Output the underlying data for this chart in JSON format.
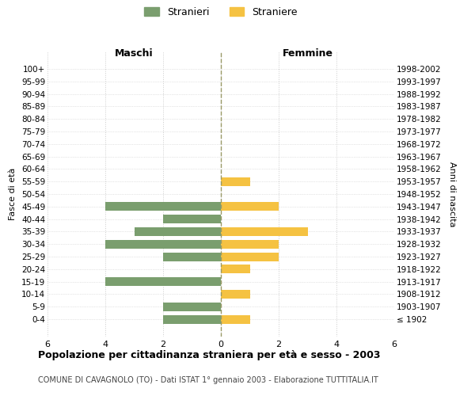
{
  "age_groups": [
    "100+",
    "95-99",
    "90-94",
    "85-89",
    "80-84",
    "75-79",
    "70-74",
    "65-69",
    "60-64",
    "55-59",
    "50-54",
    "45-49",
    "40-44",
    "35-39",
    "30-34",
    "25-29",
    "20-24",
    "15-19",
    "10-14",
    "5-9",
    "0-4"
  ],
  "birth_years": [
    "≤ 1902",
    "1903-1907",
    "1908-1912",
    "1913-1917",
    "1918-1922",
    "1923-1927",
    "1928-1932",
    "1933-1937",
    "1938-1942",
    "1943-1947",
    "1948-1952",
    "1953-1957",
    "1958-1962",
    "1963-1967",
    "1968-1972",
    "1973-1977",
    "1978-1982",
    "1983-1987",
    "1988-1992",
    "1993-1997",
    "1998-2002"
  ],
  "maschi": [
    0,
    0,
    0,
    0,
    0,
    0,
    0,
    0,
    0,
    0,
    0,
    4,
    2,
    3,
    4,
    2,
    0,
    4,
    0,
    2,
    2
  ],
  "femmine": [
    0,
    0,
    0,
    0,
    0,
    0,
    0,
    0,
    0,
    1,
    0,
    2,
    0,
    3,
    2,
    2,
    1,
    0,
    1,
    0,
    1
  ],
  "color_maschi": "#7a9e6e",
  "color_femmine": "#f5c242",
  "title": "Popolazione per cittadinanza straniera per età e sesso - 2003",
  "subtitle": "COMUNE DI CAVAGNOLO (TO) - Dati ISTAT 1° gennaio 2003 - Elaborazione TUTTITALIA.IT",
  "xlabel_left": "Maschi",
  "xlabel_right": "Femmine",
  "ylabel_left": "Fasce di età",
  "ylabel_right": "Anni di nascita",
  "legend_maschi": "Stranieri",
  "legend_femmine": "Straniere",
  "xlim": 6,
  "background_color": "#ffffff",
  "grid_color": "#cccccc"
}
